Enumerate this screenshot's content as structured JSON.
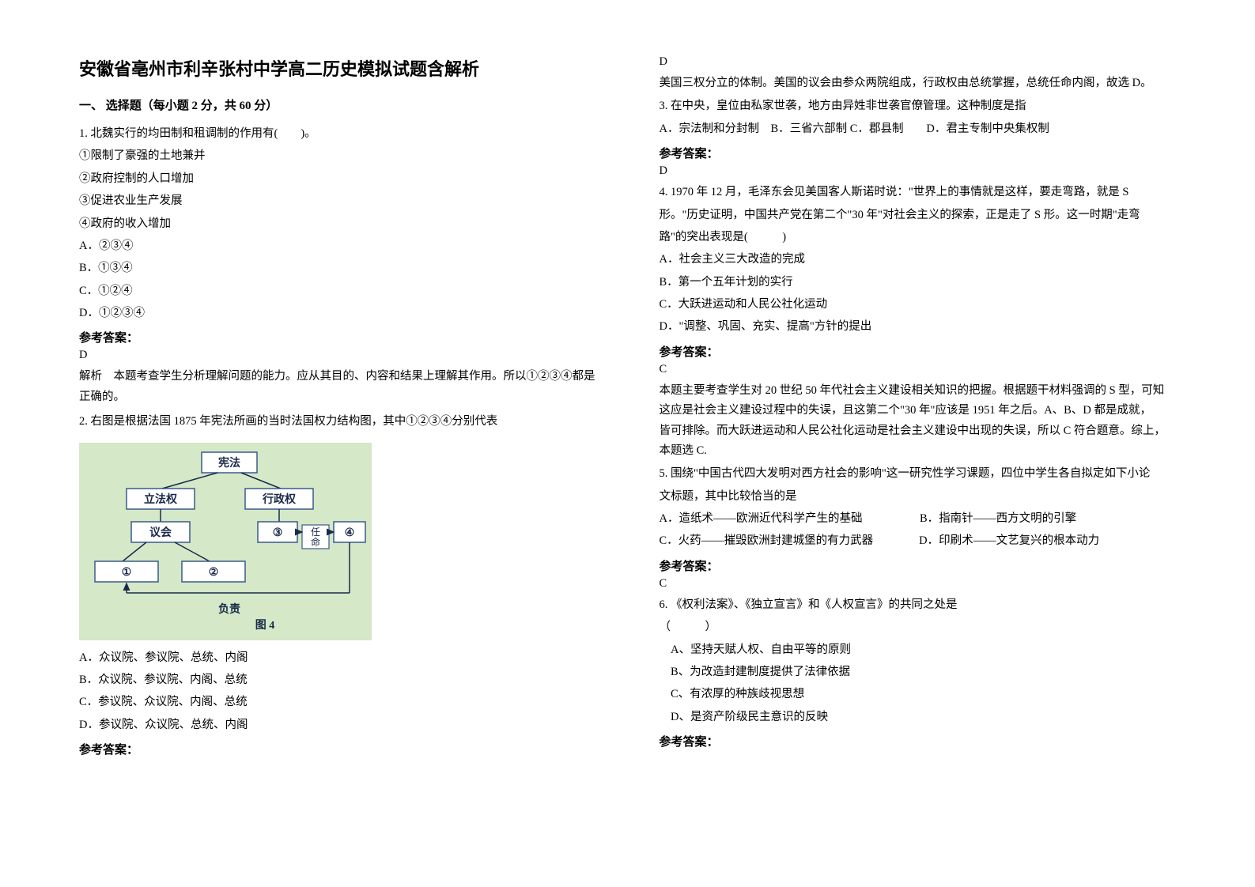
{
  "title": "安徽省亳州市利辛张村中学高二历史模拟试题含解析",
  "section_header": "一、 选择题（每小题 2 分，共 60 分）",
  "q1": {
    "stem": "1. 北魏实行的均田制和租调制的作用有(　　)。",
    "opts": [
      "①限制了豪强的土地兼并",
      "②政府控制的人口增加",
      "③促进农业生产发展",
      "④政府的收入增加"
    ],
    "choices": [
      "A．②③④",
      "B．①③④",
      "C．①②④",
      "D．①②③④"
    ],
    "answer_label": "参考答案：",
    "answer": "D",
    "explanation": "解析　本题考查学生分析理解问题的能力。应从其目的、内容和结果上理解其作用。所以①②③④都是正确的。"
  },
  "q2": {
    "stem": "2. 右图是根据法国 1875 年宪法所画的当时法国权力结构图，其中①②③④分别代表",
    "figure": {
      "bg": "#d5e8c8",
      "box_fill": "#ffffff",
      "box_stroke": "#3a5a8a",
      "text_color": "#1a2a4a",
      "arrow": "#1a2a4a",
      "labels": {
        "constitution": "宪法",
        "legislative": "立法权",
        "executive": "行政权",
        "assembly": "议会",
        "circled3": "③",
        "appoint": "任命",
        "circled4": "④",
        "circled1": "①",
        "circled2": "②",
        "responsible": "负责",
        "fignum": "图 4"
      },
      "font_size": 14,
      "font_bold": true
    },
    "choices": [
      "A．众议院、参议院、总统、内阁",
      "B．众议院、参议院、内阁、总统",
      "C．参议院、众议院、内阁、总统",
      "D．参议院、众议院、总统、内阁"
    ],
    "answer_label": "参考答案：",
    "answer": "D",
    "explanation": "美国三权分立的体制。美国的议会由参众两院组成，行政权由总统掌握，总统任命内阁，故选 D。"
  },
  "q3": {
    "stem": "3. 在中央，皇位由私家世袭，地方由异姓非世袭官僚管理。这种制度是指",
    "choices_inline": "A．宗法制和分封制　B．三省六部制 C．郡县制　　D．君主专制中央集权制",
    "answer_label": "参考答案：",
    "answer": "D"
  },
  "q4": {
    "stem_lines": [
      "4. 1970 年 12 月，毛泽东会见美国客人斯诺时说：\"世界上的事情就是这样，要走弯路，就是 S",
      "形。\"历史证明，中国共产党在第二个\"30 年\"对社会主义的探索，正是走了 S 形。这一时期\"走弯",
      "路\"的突出表现是(　　　)"
    ],
    "choices": [
      "A．社会主义三大改造的完成",
      "B．第一个五年计划的实行",
      "C．大跃进运动和人民公社化运动",
      "D．\"调整、巩固、充实、提高\"方针的提出"
    ],
    "answer_label": "参考答案：",
    "answer": "C",
    "explanation_lines": [
      "本题主要考查学生对 20 世纪 50 年代社会主义建设相关知识的把握。根据题干材料强调的 S 型，可知",
      "这应是社会主义建设过程中的失误，且这第二个\"30 年\"应该是 1951 年之后。A、B、D 都是成就，",
      "皆可排除。而大跃进运动和人民公社化运动是社会主义建设中出现的失误，所以 C 符合题意。综上，",
      "本题选 C."
    ]
  },
  "q5": {
    "stem_lines": [
      "5. 围绕\"中国古代四大发明对西方社会的影响\"这一研究性学习课题，四位中学生各自拟定如下小论",
      "文标题，其中比较恰当的是"
    ],
    "row1": "A．造纸术——欧洲近代科学产生的基础　　　　　B．指南针——西方文明的引擎",
    "row2": "C．火药——摧毁欧洲封建城堡的有力武器　　　　D．印刷术——文艺复兴的根本动力",
    "answer_label": "参考答案：",
    "answer": "C"
  },
  "q6": {
    "stem": "6. 《权利法案》、《独立宣言》和《人权宣言》的共同之处是",
    "blank": "（　　　）",
    "choices": [
      "　A、坚持天赋人权、自由平等的原则",
      "　B、为改造封建制度提供了法律依据",
      "　C、有浓厚的种族歧视思想",
      "　D、是资产阶级民主意识的反映"
    ],
    "answer_label": "参考答案："
  }
}
